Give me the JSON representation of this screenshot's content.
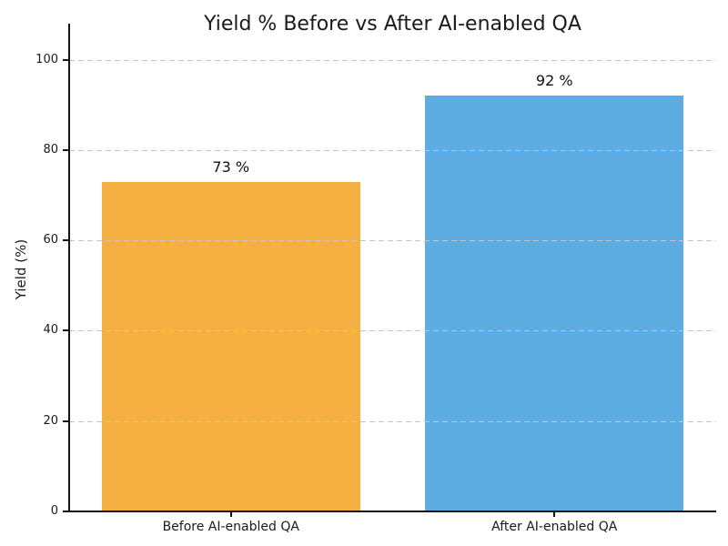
{
  "chart_data": {
    "type": "bar",
    "title": "Yield % Before vs After AI-enabled QA",
    "ylabel": "Yield (%)",
    "xlabel": "",
    "categories": [
      "Before AI-enabled QA",
      "After AI-enabled QA"
    ],
    "values": [
      73,
      92
    ],
    "value_labels": [
      "73 %",
      "92 %"
    ],
    "bar_colors": [
      "#F5B041",
      "#5DADE2"
    ],
    "yticks": [
      0,
      20,
      40,
      60,
      80,
      100
    ],
    "ylim": [
      0,
      108
    ],
    "grid": "horizontal-dashed",
    "grid_color": "#c6c6c6",
    "legend_position": "none",
    "bar_width_fraction": 0.8
  },
  "colors": {
    "background": "#ffffff",
    "axis": "#141414",
    "text": "#1a1a1a",
    "bar_before": "#F5B041",
    "bar_after": "#5DADE2"
  }
}
